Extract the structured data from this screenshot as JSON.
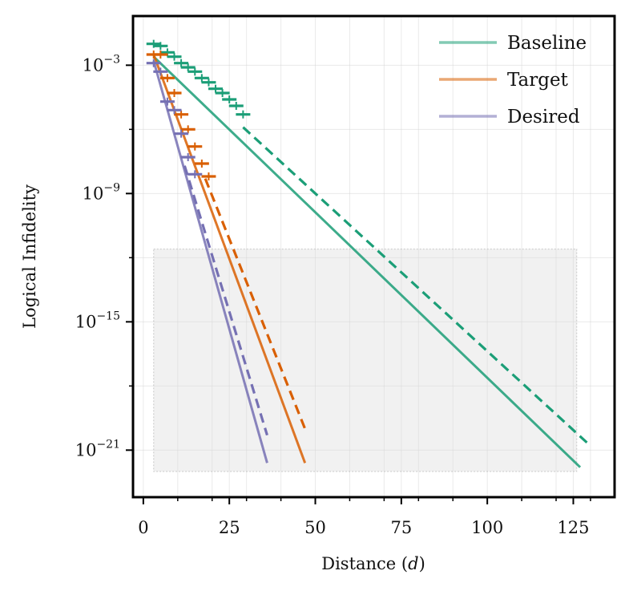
{
  "chart_data": {
    "type": "line",
    "xlabel": "Distance (",
    "xlabel_var": "d",
    "xlabel_close": ")",
    "ylabel": "Logical Infidelity",
    "xlim": [
      -3,
      137
    ],
    "ylog": true,
    "ylim_exp": [
      -23.2,
      -0.7
    ],
    "x_ticks": [
      0,
      25,
      50,
      75,
      100,
      125
    ],
    "x_minor_ticks": [
      10,
      20,
      30,
      40,
      60,
      70,
      80,
      90,
      110,
      120,
      130
    ],
    "y_ticks_exp": [
      -3,
      -9,
      -15,
      -21
    ],
    "y_minor_ticks_exp": [
      -6,
      -12,
      -18
    ],
    "y_tick_base": "10",
    "grid": true,
    "legend_position": "top-right",
    "shaded_region": {
      "x": [
        3,
        126
      ],
      "y_exp": [
        -11.6,
        -22.0
      ]
    },
    "series": [
      {
        "name": "Baseline",
        "color": "#1b9e77",
        "fit_x": [
          3,
          127
        ],
        "fit_exp": [
          -2.6,
          -21.8
        ],
        "ext_x": [
          29,
          130
        ],
        "ext_exp": [
          -5.9,
          -20.8
        ],
        "points": [
          {
            "x": 3,
            "exp": -2.0
          },
          {
            "x": 5,
            "exp": -2.1
          },
          {
            "x": 7,
            "exp": -2.4
          },
          {
            "x": 9,
            "exp": -2.6
          },
          {
            "x": 11,
            "exp": -2.9
          },
          {
            "x": 13,
            "exp": -3.1
          },
          {
            "x": 15,
            "exp": -3.3
          },
          {
            "x": 17,
            "exp": -3.6
          },
          {
            "x": 19,
            "exp": -3.8
          },
          {
            "x": 21,
            "exp": -4.1
          },
          {
            "x": 23,
            "exp": -4.3
          },
          {
            "x": 25,
            "exp": -4.6
          },
          {
            "x": 27,
            "exp": -4.9
          },
          {
            "x": 29,
            "exp": -5.3
          }
        ]
      },
      {
        "name": "Target",
        "color": "#d95f02",
        "fit_x": [
          3,
          47
        ],
        "fit_exp": [
          -2.5,
          -21.6
        ],
        "ext_x": [
          18,
          47
        ],
        "ext_exp": [
          -8.3,
          -20.0
        ],
        "points": [
          {
            "x": 3,
            "exp": -2.5
          },
          {
            "x": 5,
            "exp": -2.5
          },
          {
            "x": 7,
            "exp": -3.6
          },
          {
            "x": 9,
            "exp": -4.3
          },
          {
            "x": 11,
            "exp": -5.3
          },
          {
            "x": 13,
            "exp": -6.0
          },
          {
            "x": 15,
            "exp": -6.8
          },
          {
            "x": 17,
            "exp": -7.6
          },
          {
            "x": 19,
            "exp": -8.2
          }
        ]
      },
      {
        "name": "Desired",
        "color": "#7570b3",
        "fit_x": [
          3,
          36
        ],
        "fit_exp": [
          -2.8,
          -21.6
        ],
        "ext_x": [
          12,
          36
        ],
        "ext_exp": [
          -7.7,
          -20.3
        ],
        "points": [
          {
            "x": 3,
            "exp": -2.9
          },
          {
            "x": 5,
            "exp": -3.3
          },
          {
            "x": 7,
            "exp": -4.7
          },
          {
            "x": 9,
            "exp": -5.1
          },
          {
            "x": 11,
            "exp": -6.2
          },
          {
            "x": 13,
            "exp": -7.3
          },
          {
            "x": 15,
            "exp": -8.1
          }
        ]
      }
    ]
  }
}
